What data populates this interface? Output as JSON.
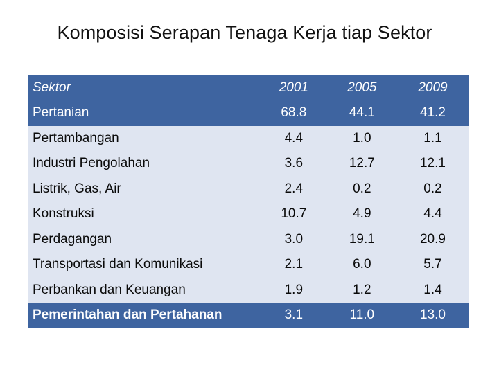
{
  "title": "Komposisi Serapan Tenaga Kerja tiap Sektor",
  "table": {
    "header": {
      "sektor": "Sektor",
      "y2001": "2001",
      "y2005": "2005",
      "y2009": "2009"
    },
    "rows": [
      {
        "sektor": "Pertanian",
        "y2001": "68.8",
        "y2005": "44.1",
        "y2009": "41.2"
      },
      {
        "sektor": "Pertambangan",
        "y2001": "4.4",
        "y2005": "1.0",
        "y2009": "1.1"
      },
      {
        "sektor": "Industri Pengolahan",
        "y2001": "3.6",
        "y2005": "12.7",
        "y2009": "12.1"
      },
      {
        "sektor": "Listrik, Gas, Air",
        "y2001": "2.4",
        "y2005": "0.2",
        "y2009": "0.2"
      },
      {
        "sektor": "Konstruksi",
        "y2001": "10.7",
        "y2005": "4.9",
        "y2009": "4.4"
      },
      {
        "sektor": "Perdagangan",
        "y2001": "3.0",
        "y2005": "19.1",
        "y2009": "20.9"
      },
      {
        "sektor": "Transportasi dan Komunikasi",
        "y2001": "2.1",
        "y2005": "6.0",
        "y2009": "5.7"
      },
      {
        "sektor": "Perbankan dan Keuangan",
        "y2001": "1.9",
        "y2005": "1.2",
        "y2009": "1.4"
      },
      {
        "sektor": "Pemerintahan dan Pertahanan",
        "y2001": "3.1",
        "y2005": "11.0",
        "y2009": "13.0"
      }
    ]
  },
  "colors": {
    "header_bg": "#3e64a0",
    "band_light": "#dfe5f1"
  }
}
